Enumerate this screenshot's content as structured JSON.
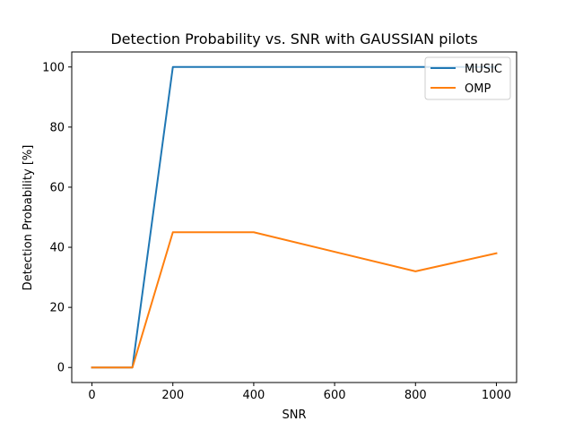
{
  "chart_data": {
    "type": "line",
    "title": "Detection Probability vs. SNR with GAUSSIAN pilots",
    "xlabel": "SNR",
    "ylabel": "Detection Probability [%]",
    "xlim": [
      -50,
      1050
    ],
    "ylim": [
      -5,
      105
    ],
    "xticks": [
      0,
      200,
      400,
      600,
      800,
      1000
    ],
    "yticks": [
      0,
      20,
      40,
      60,
      80,
      100
    ],
    "grid": false,
    "legend_position": "upper right",
    "series": [
      {
        "name": "MUSIC",
        "color": "#1f77b4",
        "x": [
          0,
          100,
          200,
          400,
          800,
          1000
        ],
        "y": [
          0,
          0,
          100,
          100,
          100,
          100
        ]
      },
      {
        "name": "OMP",
        "color": "#ff7f0e",
        "x": [
          0,
          100,
          200,
          400,
          800,
          1000
        ],
        "y": [
          0,
          0,
          45,
          45,
          32,
          38
        ]
      }
    ]
  }
}
